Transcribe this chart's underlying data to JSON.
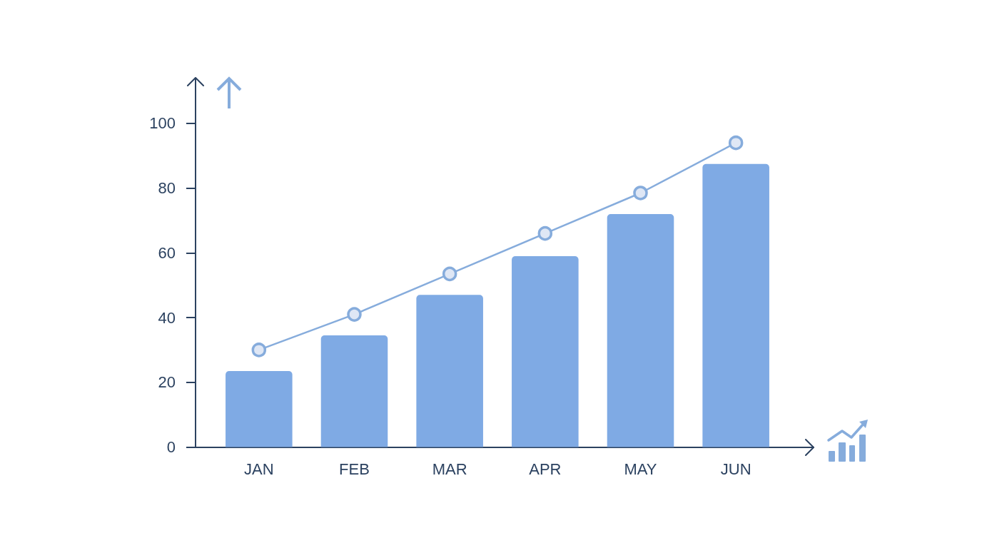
{
  "chart_data": {
    "type": "bar",
    "categories": [
      "JAN",
      "FEB",
      "MAR",
      "APR",
      "MAY",
      "JUN"
    ],
    "ylim": [
      0,
      114
    ],
    "yticks": [
      0,
      20,
      40,
      60,
      80,
      100
    ],
    "marker": "circle",
    "series": [
      {
        "color": "#7faae4",
        "values": [
          23.5,
          34.5,
          47,
          59,
          72,
          87.5
        ]
      },
      {
        "type": "line",
        "color": "#86acdc",
        "values": [
          30,
          41,
          53.5,
          66,
          78.5,
          94
        ]
      }
    ]
  }
}
